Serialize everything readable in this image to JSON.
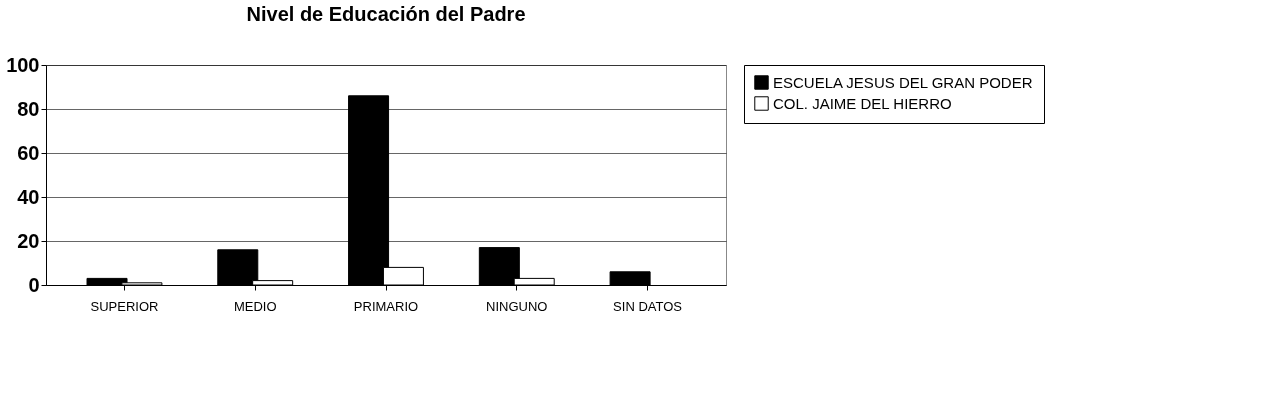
{
  "chart_data": {
    "type": "bar",
    "title": "Nivel de Educación del Padre",
    "categories": [
      "SUPERIOR",
      "MEDIO",
      "PRIMARIO",
      "NINGUNO",
      "SIN DATOS"
    ],
    "series": [
      {
        "name": "ESCUELA JESUS DEL GRAN PODER",
        "color": "#000000",
        "values": [
          3,
          16,
          86,
          17,
          6
        ]
      },
      {
        "name": "COL. JAIME DEL HIERRO",
        "color": "#ffffff",
        "values": [
          1,
          2,
          8,
          3,
          null
        ]
      }
    ],
    "ylim": [
      0,
      100
    ],
    "yticks": [
      0,
      20,
      40,
      60,
      80,
      100
    ],
    "grid": "y",
    "legend": "right"
  }
}
